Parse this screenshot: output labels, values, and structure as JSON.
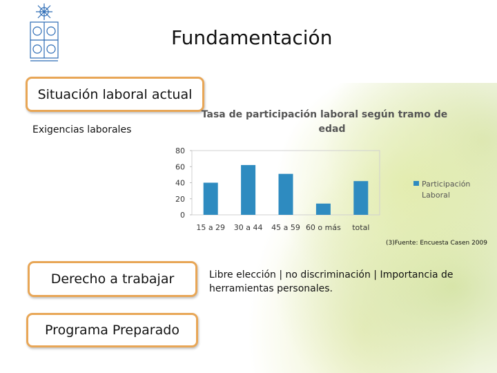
{
  "slide": {
    "title": "Fundamentación",
    "subtitle": "Exigencias laborales",
    "source_note": "(3)Fuente: Encuesta Casen 2009",
    "description": "Libre elección | no discriminación | Importancia de herramientas personales."
  },
  "boxes": {
    "situacion": "Situación laboral actual",
    "derecho": "Derecho a trabajar",
    "programa": "Programa Preparado"
  },
  "colors": {
    "accent_border": "#e8a656",
    "bar": "#2e8bc0"
  },
  "icons": {
    "logo": "university-crest-icon"
  },
  "chart_data": {
    "type": "bar",
    "title_lines": [
      "Tasa de participación laboral  según tramo de",
      "edad"
    ],
    "categories": [
      "15 a 29",
      "30 a 44",
      "45 a 59",
      "60 o más",
      "total"
    ],
    "series": [
      {
        "name": "Participación Laboral",
        "values": [
          40,
          62,
          51,
          14,
          42
        ]
      }
    ],
    "ylim": [
      0,
      80
    ],
    "yticks": [
      0,
      20,
      40,
      60,
      80
    ],
    "legend": "right",
    "legend_lines": [
      "Participación",
      "Laboral"
    ],
    "grid": false
  }
}
